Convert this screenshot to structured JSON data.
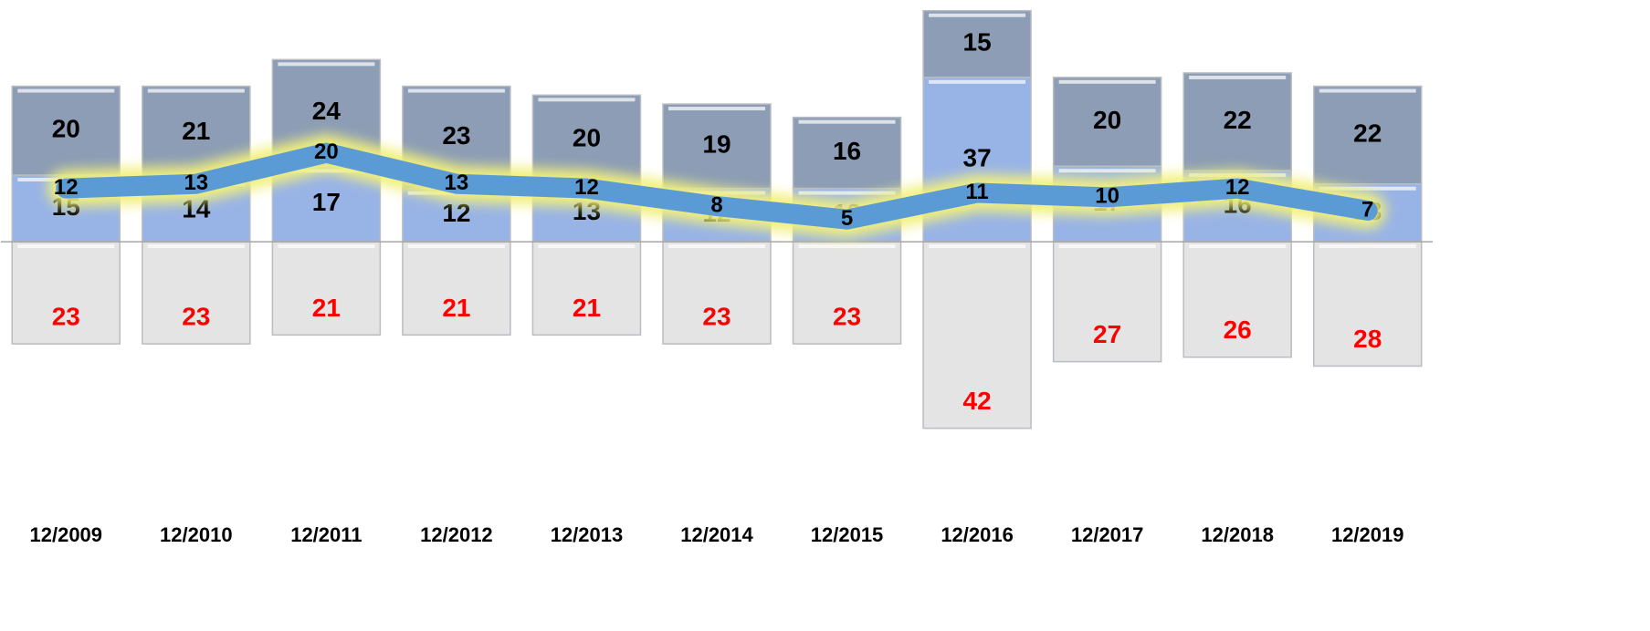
{
  "chart_data": {
    "type": "bar",
    "categories": [
      "12/2009",
      "12/2010",
      "12/2011",
      "12/2012",
      "12/2013",
      "12/2014",
      "12/2015",
      "12/2016",
      "12/2017",
      "12/2018",
      "12/2019"
    ],
    "series": [
      {
        "color": "#98b3e6",
        "values": [
          15,
          14,
          17,
          12,
          13,
          12,
          12,
          37,
          17,
          16,
          13
        ]
      },
      {
        "color": "#8c9db5",
        "values": [
          20,
          21,
          24,
          23,
          20,
          19,
          16,
          15,
          20,
          22,
          22
        ]
      },
      {
        "color": "#e4e4e4",
        "label_color": "#ff0000",
        "values": [
          -23,
          -23,
          -21,
          -21,
          -21,
          -23,
          -23,
          -42,
          -27,
          -26,
          -28
        ],
        "value_labels": [
          "23",
          "23",
          "21",
          "21",
          "21",
          "23",
          "23",
          "42",
          "27",
          "26",
          "28"
        ]
      },
      {
        "type": "line",
        "color": "#5b9bd5",
        "glow": "#f2f07a",
        "values": [
          12,
          13,
          20,
          13,
          12,
          8,
          5,
          11,
          10,
          12,
          7
        ]
      }
    ],
    "ylim": [
      -55,
      54
    ]
  }
}
